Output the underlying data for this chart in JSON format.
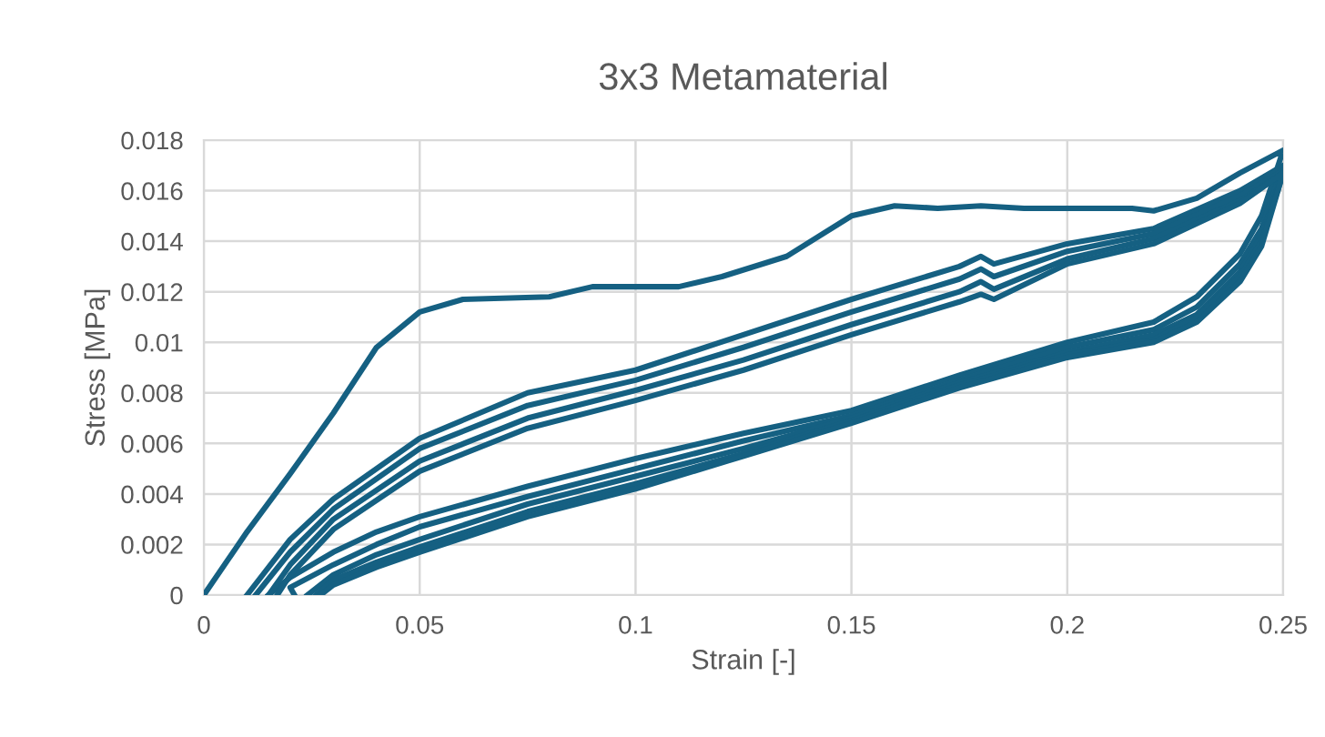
{
  "chart_data": {
    "type": "line",
    "title": "3x3 Metamaterial",
    "xlabel": "Strain [-]",
    "ylabel": "Stress [MPa]",
    "xlim": [
      0,
      0.25
    ],
    "xticks": [
      0,
      0.05,
      0.1,
      0.15,
      0.2,
      0.25
    ],
    "ylim": [
      0,
      0.018
    ],
    "yticks": [
      0,
      0.002,
      0.004,
      0.006,
      0.008,
      0.01,
      0.012,
      0.014,
      0.016,
      0.018
    ],
    "grid": true,
    "marker": "none",
    "line_style": "solid",
    "series": [
      {
        "color": "#156082",
        "x": [
          0,
          0.01,
          0.02,
          0.03,
          0.04,
          0.05,
          0.06,
          0.08,
          0.09,
          0.1,
          0.11,
          0.12,
          0.135,
          0.15,
          0.16,
          0.17,
          0.18,
          0.19,
          0.2,
          0.215,
          0.22,
          0.23,
          0.24,
          0.25,
          0.245,
          0.24,
          0.23,
          0.22,
          0.2,
          0.175,
          0.15,
          0.125,
          0.1,
          0.075,
          0.05,
          0.04,
          0.03,
          0.02,
          0.015
        ],
        "values": [
          0,
          0.0025,
          0.0048,
          0.0072,
          0.0098,
          0.0112,
          0.0117,
          0.0118,
          0.0122,
          0.0122,
          0.0122,
          0.0126,
          0.0134,
          0.015,
          0.0154,
          0.0153,
          0.0154,
          0.0153,
          0.0153,
          0.0153,
          0.0152,
          0.0157,
          0.0167,
          0.0176,
          0.015,
          0.0135,
          0.0118,
          0.0108,
          0.01,
          0.0087,
          0.0073,
          0.0064,
          0.0054,
          0.0043,
          0.0031,
          0.0025,
          0.0017,
          0.0007,
          0
        ]
      },
      {
        "color": "#156082",
        "x": [
          0.01,
          0.02,
          0.03,
          0.05,
          0.075,
          0.1,
          0.125,
          0.15,
          0.175,
          0.18,
          0.183,
          0.2,
          0.22,
          0.24,
          0.25,
          0.245,
          0.24,
          0.23,
          0.22,
          0.2,
          0.175,
          0.15,
          0.125,
          0.1,
          0.075,
          0.05,
          0.04,
          0.03,
          0.02,
          0.021
        ],
        "values": [
          0,
          0.0022,
          0.0038,
          0.0062,
          0.008,
          0.0089,
          0.0103,
          0.0117,
          0.013,
          0.0134,
          0.0131,
          0.0139,
          0.0145,
          0.016,
          0.017,
          0.0145,
          0.0131,
          0.0114,
          0.0105,
          0.0098,
          0.0085,
          0.0071,
          0.0061,
          0.005,
          0.0039,
          0.0027,
          0.002,
          0.0012,
          0.0003,
          0
        ]
      },
      {
        "color": "#156082",
        "x": [
          0.012,
          0.02,
          0.03,
          0.05,
          0.075,
          0.1,
          0.125,
          0.15,
          0.175,
          0.18,
          0.183,
          0.2,
          0.22,
          0.24,
          0.25,
          0.245,
          0.24,
          0.23,
          0.22,
          0.2,
          0.175,
          0.15,
          0.125,
          0.1,
          0.075,
          0.05,
          0.04,
          0.03,
          0.024
        ],
        "values": [
          0,
          0.0017,
          0.0034,
          0.0058,
          0.0075,
          0.0085,
          0.0098,
          0.0112,
          0.0125,
          0.0129,
          0.0126,
          0.0136,
          0.0143,
          0.0158,
          0.0168,
          0.0142,
          0.0128,
          0.0111,
          0.0103,
          0.0096,
          0.0084,
          0.007,
          0.0058,
          0.0047,
          0.0036,
          0.0022,
          0.0016,
          0.0008,
          0
        ]
      },
      {
        "color": "#156082",
        "x": [
          0.015,
          0.02,
          0.03,
          0.05,
          0.075,
          0.1,
          0.125,
          0.15,
          0.175,
          0.18,
          0.183,
          0.2,
          0.22,
          0.24,
          0.25,
          0.245,
          0.24,
          0.23,
          0.22,
          0.2,
          0.175,
          0.15,
          0.125,
          0.1,
          0.075,
          0.05,
          0.04,
          0.03,
          0.026
        ],
        "values": [
          0,
          0.0012,
          0.003,
          0.0053,
          0.007,
          0.0081,
          0.0093,
          0.0107,
          0.012,
          0.0124,
          0.0121,
          0.0133,
          0.0141,
          0.0156,
          0.0167,
          0.014,
          0.0126,
          0.011,
          0.0101,
          0.0095,
          0.0083,
          0.0069,
          0.0056,
          0.0044,
          0.0033,
          0.0019,
          0.0013,
          0.0006,
          0
        ]
      },
      {
        "color": "#156082",
        "x": [
          0.017,
          0.02,
          0.03,
          0.05,
          0.075,
          0.1,
          0.125,
          0.15,
          0.175,
          0.18,
          0.183,
          0.2,
          0.22,
          0.24,
          0.25,
          0.245,
          0.24,
          0.23,
          0.22,
          0.2,
          0.175,
          0.15,
          0.125,
          0.1,
          0.075,
          0.05,
          0.04,
          0.03,
          0.027
        ],
        "values": [
          0,
          0.0008,
          0.0026,
          0.0049,
          0.0066,
          0.0077,
          0.0089,
          0.0103,
          0.0116,
          0.0119,
          0.0117,
          0.0131,
          0.0139,
          0.0155,
          0.0167,
          0.0138,
          0.0124,
          0.0108,
          0.01,
          0.0094,
          0.0082,
          0.0068,
          0.0055,
          0.0042,
          0.0031,
          0.0017,
          0.0011,
          0.0004,
          0
        ]
      }
    ]
  }
}
